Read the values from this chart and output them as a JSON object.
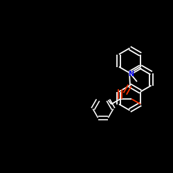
{
  "bg_color": "#000000",
  "bond_color": "#ffffff",
  "oxygen_color": "#ff3300",
  "nitrogen_color": "#0000ee",
  "fig_width": 2.5,
  "fig_height": 2.5,
  "dpi": 100,
  "lw": 1.3,
  "r": 0.72
}
